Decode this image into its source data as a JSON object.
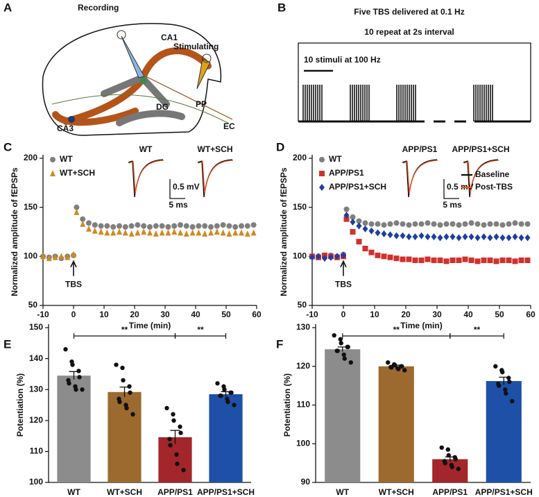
{
  "figure_a": {
    "panel": "A",
    "labels": [
      "Recording",
      "Stimulating",
      "CA1",
      "CA3",
      "DG",
      "PP",
      "EC"
    ]
  },
  "figure_b": {
    "panel": "B",
    "lines": [
      "Five TBS delivered at 0.1 Hz",
      "10 repeat at 2s interval",
      "10 stimuli at 100 Hz"
    ]
  },
  "chart_data": [
    {
      "type": "line",
      "panel": "C",
      "ylabel": "Normalized amplitude of fEPSPs",
      "xlabel": "Time (min)",
      "xlim": [
        -10,
        60
      ],
      "xticks": [
        -10,
        0,
        10,
        20,
        30,
        40,
        50,
        60
      ],
      "ylim": [
        50,
        200
      ],
      "yticks": [
        50,
        100,
        150,
        200
      ],
      "annotation": "TBS",
      "insets": [
        "WT",
        "WT+SCH"
      ],
      "scale_bar": [
        "0.5 mV",
        "5 ms"
      ],
      "x": [
        -10,
        -8,
        -6,
        -4,
        -2,
        0,
        1,
        3,
        5,
        7,
        9,
        11,
        13,
        15,
        17,
        19,
        21,
        23,
        25,
        27,
        29,
        31,
        33,
        35,
        37,
        39,
        41,
        43,
        45,
        47,
        49,
        51,
        53,
        55,
        57,
        59
      ],
      "series": [
        {
          "name": "WT",
          "color": "#7f7f7f",
          "marker": "circle",
          "values": [
            100,
            99,
            100,
            98,
            100,
            101,
            150,
            138,
            134,
            132,
            131,
            131,
            130,
            131,
            130,
            131,
            132,
            131,
            130,
            131,
            131,
            130,
            131,
            132,
            131,
            130,
            131,
            131,
            130,
            131,
            132,
            131,
            130,
            131,
            131,
            132
          ]
        },
        {
          "name": "WT+SCH",
          "color": "#cf8a22",
          "marker": "triangle",
          "values": [
            100,
            98,
            99,
            100,
            99,
            102,
            145,
            133,
            128,
            126,
            125,
            124,
            124,
            125,
            124,
            123,
            124,
            125,
            124,
            123,
            124,
            124,
            125,
            124,
            123,
            124,
            124,
            123,
            124,
            125,
            124,
            123,
            124,
            124,
            123,
            124
          ]
        }
      ]
    },
    {
      "type": "line",
      "panel": "D",
      "ylabel": "Normalized amplitude of fEPSPs",
      "xlabel": "Time (min)",
      "xlim": [
        -10,
        60
      ],
      "xticks": [
        -10,
        0,
        10,
        20,
        30,
        40,
        50,
        60
      ],
      "ylim": [
        50,
        200
      ],
      "yticks": [
        50,
        100,
        150,
        200
      ],
      "annotation": "TBS",
      "insets": [
        "APP/PS1",
        "APP/PS1+SCH"
      ],
      "scale_bar": [
        "0.5 mV",
        "5 ms"
      ],
      "trace_legend": [
        {
          "name": "Baseline",
          "color": "#000000"
        },
        {
          "name": "Post-TBS",
          "color": "#e8501e"
        }
      ],
      "x": [
        -10,
        -8,
        -6,
        -4,
        -2,
        0,
        1,
        3,
        5,
        7,
        9,
        11,
        13,
        15,
        17,
        19,
        21,
        23,
        25,
        27,
        29,
        31,
        33,
        35,
        37,
        39,
        41,
        43,
        45,
        47,
        49,
        51,
        53,
        55,
        57,
        59
      ],
      "series": [
        {
          "name": "WT",
          "color": "#7f7f7f",
          "marker": "circle",
          "values": [
            100,
            100,
            99,
            101,
            100,
            102,
            148,
            140,
            136,
            134,
            133,
            133,
            132,
            133,
            134,
            133,
            132,
            133,
            133,
            134,
            133,
            132,
            133,
            133,
            132,
            133,
            134,
            133,
            132,
            133,
            133,
            132,
            133,
            134,
            133,
            133
          ]
        },
        {
          "name": "APP/PS1",
          "color": "#d0312d",
          "marker": "square",
          "values": [
            100,
            99,
            101,
            100,
            99,
            100,
            138,
            125,
            115,
            108,
            104,
            101,
            100,
            99,
            98,
            97,
            97,
            96,
            96,
            97,
            96,
            96,
            95,
            96,
            96,
            97,
            96,
            95,
            96,
            96,
            95,
            96,
            96,
            95,
            96,
            96
          ]
        },
        {
          "name": "APP/PS1+SCH",
          "color": "#1f3fa0",
          "marker": "diamond",
          "values": [
            99,
            100,
            98,
            99,
            100,
            101,
            142,
            135,
            131,
            128,
            126,
            124,
            123,
            122,
            121,
            121,
            120,
            120,
            121,
            120,
            120,
            119,
            120,
            120,
            119,
            120,
            120,
            119,
            120,
            119,
            120,
            119,
            119,
            120,
            119,
            119
          ]
        }
      ]
    },
    {
      "type": "bar",
      "panel": "E",
      "ylabel": "Potentiation (%)",
      "ylim": [
        100,
        150
      ],
      "yticks": [
        100,
        110,
        120,
        130,
        140,
        150
      ],
      "categories": [
        "WT",
        "WT+SCH",
        "APP/PS1",
        "APP/PS1+SCH"
      ],
      "colors": [
        "#8c8c8c",
        "#9c6a2e",
        "#a3262a",
        "#1f50a8"
      ],
      "values": [
        134.5,
        129.2,
        114.6,
        128.5
      ],
      "errors": [
        1.3,
        1.6,
        2.2,
        0.8
      ],
      "points": [
        [
          143,
          139,
          138,
          136,
          134,
          133,
          132,
          131,
          130,
          130
        ],
        [
          138,
          137,
          133,
          131,
          129,
          127,
          126,
          125,
          124,
          122
        ],
        [
          124,
          122,
          120,
          118,
          116,
          114,
          112,
          109,
          106,
          104
        ],
        [
          132,
          131,
          130,
          129,
          129,
          128,
          128,
          127,
          126,
          125
        ]
      ],
      "brackets": [
        {
          "between": [
            "WT",
            "APP/PS1"
          ],
          "label": "**"
        },
        {
          "between": [
            "APP/PS1",
            "APP/PS1+SCH"
          ],
          "label": "**"
        }
      ]
    },
    {
      "type": "bar",
      "panel": "F",
      "ylabel": "Potentiation (%)",
      "ylim": [
        90,
        130
      ],
      "yticks": [
        90,
        100,
        110,
        120,
        130
      ],
      "categories": [
        "WT",
        "WT+SCH",
        "APP/PS1",
        "APP/PS1+SCH"
      ],
      "colors": [
        "#8c8c8c",
        "#9c6a2e",
        "#a3262a",
        "#1f50a8"
      ],
      "values": [
        124.4,
        120.0,
        96.0,
        116.2
      ],
      "errors": [
        0.6,
        0.3,
        0.6,
        1.0
      ],
      "points": [
        [
          128,
          127,
          126,
          125,
          125,
          124,
          124,
          123,
          122,
          121
        ],
        [
          121,
          120.5,
          120.3,
          120,
          120,
          119.8,
          119.7,
          119.5,
          119.3,
          119
        ],
        [
          99,
          98.5,
          97,
          96.5,
          96,
          95.5,
          95,
          94.5,
          94,
          93.5
        ],
        [
          120,
          119,
          118.5,
          117,
          116,
          115.5,
          115,
          114,
          113,
          111
        ]
      ],
      "brackets": [
        {
          "between": [
            "WT",
            "APP/PS1"
          ],
          "label": "**"
        },
        {
          "between": [
            "APP/PS1",
            "APP/PS1+SCH"
          ],
          "label": "**"
        }
      ]
    }
  ]
}
